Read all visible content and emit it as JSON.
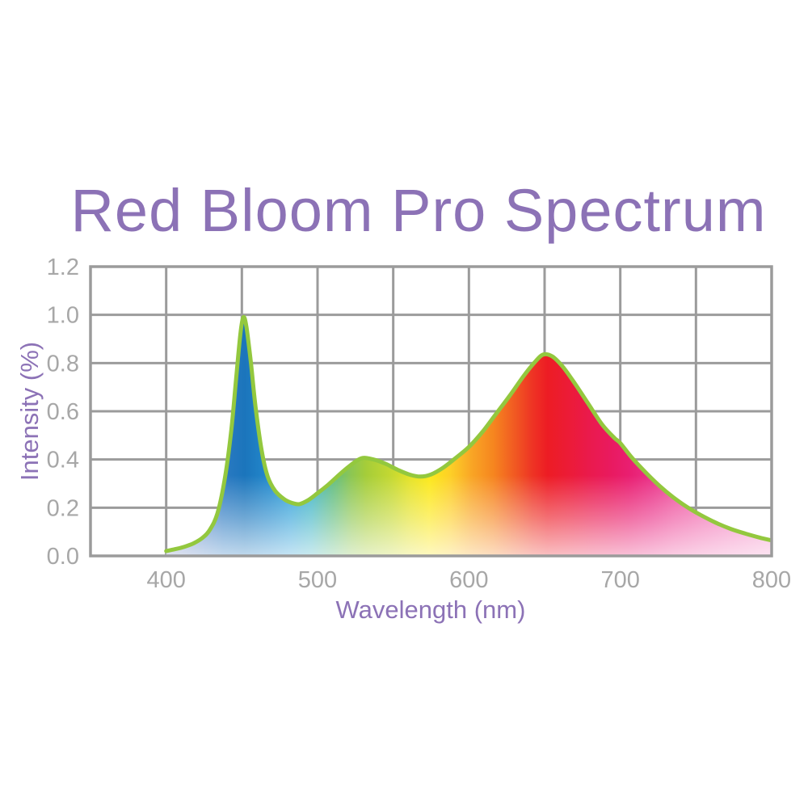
{
  "chart_data": {
    "type": "area",
    "title": "Red Bloom Pro Spectrum",
    "xlabel": "Wavelength (nm)",
    "ylabel": "Intensity (%)",
    "xlim": [
      350,
      800
    ],
    "ylim": [
      0,
      1.2
    ],
    "x_tick_labels": [
      400,
      500,
      600,
      700,
      800
    ],
    "x_grid_step_nm": 50,
    "y_tick_labels": [
      "0.0",
      "0.2",
      "0.4",
      "0.6",
      "0.8",
      "1.0",
      "1.2"
    ],
    "y_grid_step": 0.2,
    "grid": true,
    "legend_position": "none",
    "series": [
      {
        "name": "spectrum-intensity",
        "points": [
          [
            400,
            0.02
          ],
          [
            406,
            0.028
          ],
          [
            412,
            0.038
          ],
          [
            418,
            0.052
          ],
          [
            424,
            0.075
          ],
          [
            429,
            0.11
          ],
          [
            434,
            0.18
          ],
          [
            439,
            0.33
          ],
          [
            443,
            0.52
          ],
          [
            446,
            0.72
          ],
          [
            449,
            0.92
          ],
          [
            451,
            0.99
          ],
          [
            453,
            0.95
          ],
          [
            456,
            0.8
          ],
          [
            459,
            0.62
          ],
          [
            463,
            0.44
          ],
          [
            467,
            0.33
          ],
          [
            472,
            0.27
          ],
          [
            478,
            0.235
          ],
          [
            483,
            0.22
          ],
          [
            488,
            0.215
          ],
          [
            494,
            0.232
          ],
          [
            500,
            0.26
          ],
          [
            507,
            0.295
          ],
          [
            514,
            0.335
          ],
          [
            521,
            0.372
          ],
          [
            529,
            0.405
          ],
          [
            537,
            0.4
          ],
          [
            545,
            0.382
          ],
          [
            553,
            0.357
          ],
          [
            561,
            0.337
          ],
          [
            568,
            0.329
          ],
          [
            575,
            0.338
          ],
          [
            583,
            0.366
          ],
          [
            591,
            0.405
          ],
          [
            600,
            0.452
          ],
          [
            609,
            0.515
          ],
          [
            618,
            0.59
          ],
          [
            627,
            0.665
          ],
          [
            636,
            0.745
          ],
          [
            643,
            0.8
          ],
          [
            649,
            0.835
          ],
          [
            655,
            0.828
          ],
          [
            662,
            0.785
          ],
          [
            670,
            0.715
          ],
          [
            679,
            0.63
          ],
          [
            688,
            0.545
          ],
          [
            696,
            0.49
          ],
          [
            700,
            0.468
          ],
          [
            708,
            0.405
          ],
          [
            717,
            0.345
          ],
          [
            726,
            0.29
          ],
          [
            735,
            0.243
          ],
          [
            744,
            0.203
          ],
          [
            753,
            0.17
          ],
          [
            763,
            0.138
          ],
          [
            773,
            0.112
          ],
          [
            783,
            0.092
          ],
          [
            792,
            0.076
          ],
          [
            800,
            0.064
          ]
        ]
      }
    ],
    "colors": {
      "title_and_axis_labels": "#8C72B6",
      "tick_labels": "#A7A7A7",
      "grid": "#9B9B9B",
      "plot_border": "#9B9B9B",
      "curve_outline": "#93C83E",
      "background": "#FFFFFF"
    },
    "spectrum_gradient_stops": [
      {
        "nm": 400,
        "color": "#8F9BC7"
      },
      {
        "nm": 418,
        "color": "#6489C7"
      },
      {
        "nm": 438,
        "color": "#2B79C1"
      },
      {
        "nm": 452,
        "color": "#1B75BC"
      },
      {
        "nm": 468,
        "color": "#2389CC"
      },
      {
        "nm": 482,
        "color": "#2FA0D8"
      },
      {
        "nm": 496,
        "color": "#3FB4C4"
      },
      {
        "nm": 510,
        "color": "#62BD82"
      },
      {
        "nm": 522,
        "color": "#8CC653"
      },
      {
        "nm": 532,
        "color": "#A5CD39"
      },
      {
        "nm": 548,
        "color": "#C3D832"
      },
      {
        "nm": 562,
        "color": "#E7E327"
      },
      {
        "nm": 574,
        "color": "#FCE81A"
      },
      {
        "nm": 588,
        "color": "#FDCF27"
      },
      {
        "nm": 602,
        "color": "#F9A525"
      },
      {
        "nm": 616,
        "color": "#F6861F"
      },
      {
        "nm": 630,
        "color": "#F15A22"
      },
      {
        "nm": 642,
        "color": "#EE3424"
      },
      {
        "nm": 652,
        "color": "#ED1C24"
      },
      {
        "nm": 666,
        "color": "#EC1B37"
      },
      {
        "nm": 680,
        "color": "#EA1A4D"
      },
      {
        "nm": 694,
        "color": "#E91A60"
      },
      {
        "nm": 706,
        "color": "#E91E71"
      },
      {
        "nm": 720,
        "color": "#EA2F86"
      },
      {
        "nm": 736,
        "color": "#EE4C9B"
      },
      {
        "nm": 752,
        "color": "#F063AB"
      },
      {
        "nm": 768,
        "color": "#F277B9"
      },
      {
        "nm": 784,
        "color": "#F48AC4"
      },
      {
        "nm": 800,
        "color": "#F59CCF"
      }
    ],
    "bottom_white_fade": [
      {
        "offset": 0.0,
        "color": "rgba(255,255,255,0.72)"
      },
      {
        "offset": 0.48,
        "color": "rgba(255,255,255,0.36)"
      },
      {
        "offset": 1.0,
        "color": "rgba(255,255,255,0)"
      }
    ]
  }
}
